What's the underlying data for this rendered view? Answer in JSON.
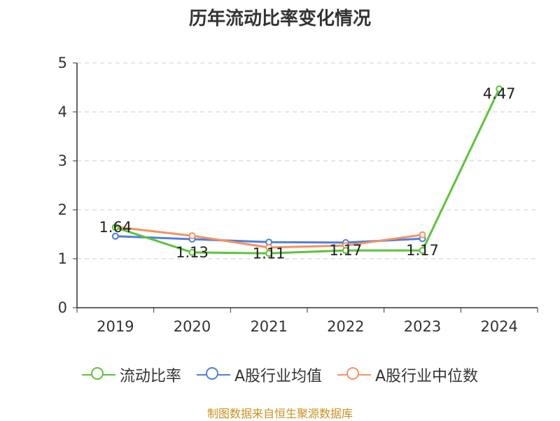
{
  "chart_data": {
    "type": "line",
    "title": "历年流动比率变化情况",
    "categories": [
      "2019",
      "2020",
      "2021",
      "2022",
      "2023",
      "2024"
    ],
    "y_ticks": [
      "0",
      "1",
      "2",
      "3",
      "4",
      "5"
    ],
    "ylim": [
      0,
      5
    ],
    "grid": true,
    "legend_position": "bottom",
    "series": [
      {
        "name": "流动比率",
        "color": "#5bc43a",
        "values": [
          1.64,
          1.13,
          1.11,
          1.17,
          1.17,
          4.47
        ],
        "labels": [
          "1.64",
          "1.13",
          "1.11",
          "1.17",
          "1.17",
          "4.47"
        ]
      },
      {
        "name": "A股行业均值",
        "color": "#4f7fe0",
        "values": [
          1.46,
          1.4,
          1.34,
          1.33,
          1.41,
          null
        ]
      },
      {
        "name": "A股行业中位数",
        "color": "#f4925f",
        "values": [
          1.65,
          1.47,
          1.23,
          1.27,
          1.49,
          null
        ]
      }
    ]
  },
  "source": "制图数据来自恒生聚源数据库"
}
